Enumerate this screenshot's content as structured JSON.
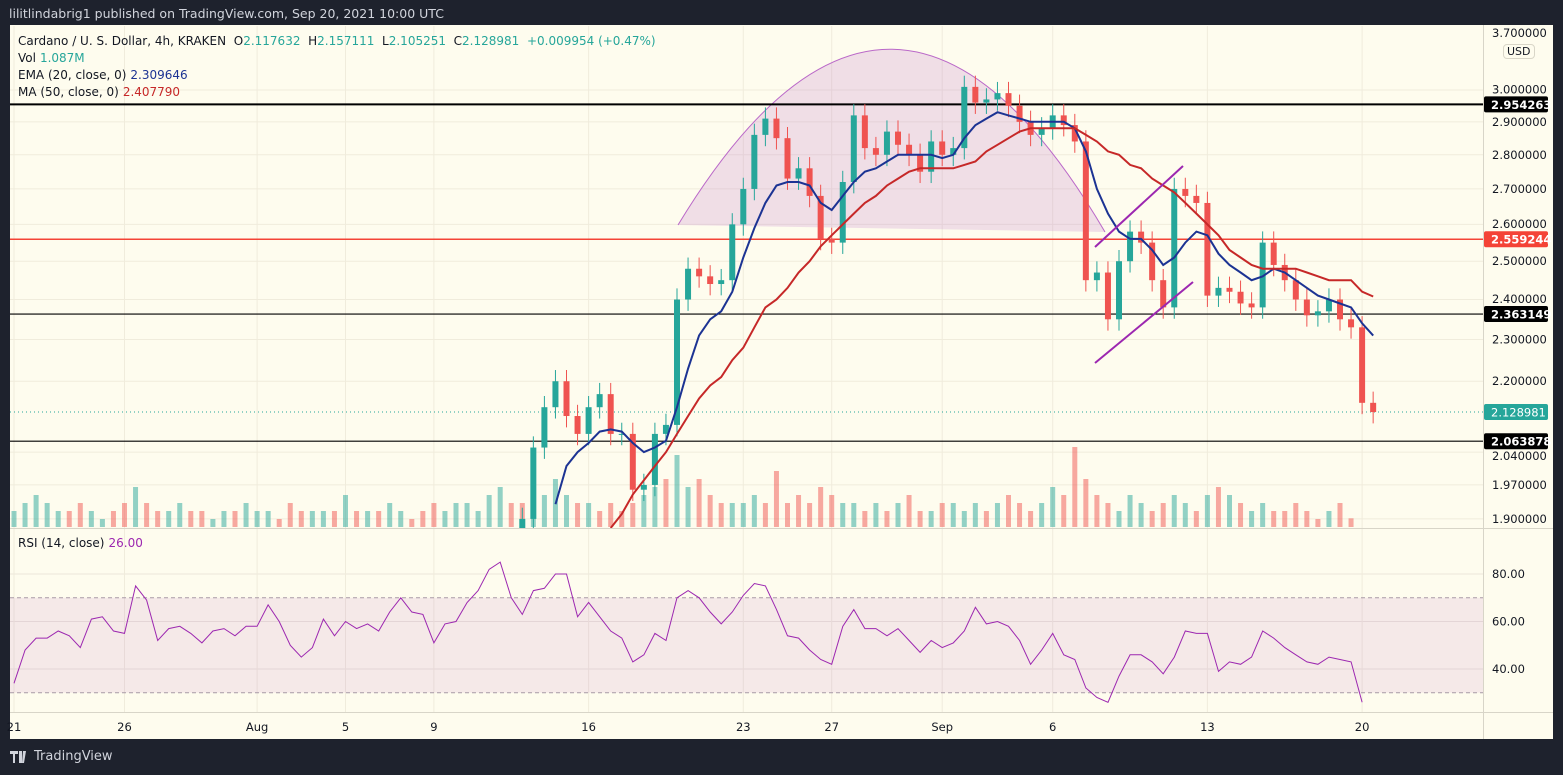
{
  "header": {
    "published": "lilitlindabrig1 published on TradingView.com, Sep 20, 2021 10:00 UTC"
  },
  "legend": {
    "symbol": "Cardano / U. S. Dollar, 4h, KRAKEN",
    "o_label": "O",
    "o": "2.117632",
    "h_label": "H",
    "h": "2.157111",
    "l_label": "L",
    "l": "2.105251",
    "c_label": "C",
    "c": "2.128981",
    "change": "+0.009954 (+0.47%)",
    "vol_label": "Vol",
    "vol": "1.087M",
    "ema_label": "EMA (20, close, 0)",
    "ema": "2.309646",
    "ma_label": "MA (50, close, 0)",
    "ma": "2.407790",
    "rsi_label": "RSI (14, close)",
    "rsi": "26.00"
  },
  "currency_button": "USD",
  "footer": {
    "brand": "TradingView"
  },
  "colors": {
    "up": "#26a69a",
    "down": "#ef5350",
    "ema": "#1c3393",
    "ma": "#c62828",
    "rsi": "#9c27b0",
    "resistance": "#f44336",
    "level": "#000000",
    "pattern": "#9c27b0"
  },
  "chart_data": [
    {
      "type": "candlestick",
      "scale": "log",
      "ylim": [
        1.9,
        3.7
      ],
      "grid": true,
      "y_ticks": [
        "3.700000",
        "3.000000",
        "2.900000",
        "2.800000",
        "2.700000",
        "2.600000",
        "2.500000",
        "2.400000",
        "2.300000",
        "2.200000",
        "2.040000",
        "1.970000",
        "1.900000"
      ],
      "x_ticks": [
        "21",
        "26",
        "Aug",
        "5",
        "9",
        "16",
        "23",
        "27",
        "Sep",
        "6",
        "13",
        "20"
      ],
      "x_tick_dates": [
        "2021-07-21",
        "2021-07-26",
        "2021-08-01",
        "2021-08-05",
        "2021-08-09",
        "2021-08-16",
        "2021-08-23",
        "2021-08-27",
        "2021-09-01",
        "2021-09-06",
        "2021-09-13",
        "2021-09-20"
      ],
      "axis_start": "2021-07-21 00:00",
      "sample_interval": "12h",
      "close_start": "2021-08-13 00:00",
      "close": [
        1.9,
        2.05,
        2.14,
        2.2,
        2.12,
        2.08,
        2.14,
        2.17,
        2.08,
        2.08,
        1.96,
        1.97,
        2.08,
        2.1,
        2.4,
        2.48,
        2.46,
        2.44,
        2.45,
        2.6,
        2.7,
        2.86,
        2.91,
        2.85,
        2.73,
        2.76,
        2.68,
        2.56,
        2.55,
        2.72,
        2.92,
        2.82,
        2.8,
        2.87,
        2.83,
        2.8,
        2.75,
        2.84,
        2.8,
        2.82,
        3.01,
        2.96,
        2.97,
        2.99,
        2.95,
        2.9,
        2.86,
        2.88,
        2.92,
        2.89,
        2.84,
        2.45,
        2.47,
        2.35,
        2.5,
        2.58,
        2.55,
        2.45,
        2.38,
        2.7,
        2.68,
        2.66,
        2.41,
        2.43,
        2.42,
        2.39,
        2.38,
        2.55,
        2.49,
        2.45,
        2.4,
        2.36,
        2.37,
        2.4,
        2.35,
        2.33,
        2.15,
        2.128981
      ],
      "ema20": [
        null,
        null,
        null,
        1.93,
        2.01,
        2.04,
        2.06,
        2.085,
        2.09,
        2.085,
        2.06,
        2.04,
        2.05,
        2.065,
        2.14,
        2.23,
        2.31,
        2.35,
        2.37,
        2.42,
        2.51,
        2.59,
        2.66,
        2.71,
        2.72,
        2.72,
        2.71,
        2.66,
        2.64,
        2.68,
        2.72,
        2.75,
        2.76,
        2.78,
        2.8,
        2.8,
        2.8,
        2.8,
        2.79,
        2.8,
        2.85,
        2.89,
        2.91,
        2.93,
        2.92,
        2.91,
        2.9,
        2.9,
        2.9,
        2.9,
        2.88,
        2.81,
        2.7,
        2.63,
        2.58,
        2.56,
        2.56,
        2.53,
        2.49,
        2.51,
        2.55,
        2.58,
        2.57,
        2.52,
        2.49,
        2.47,
        2.45,
        2.46,
        2.48,
        2.47,
        2.45,
        2.43,
        2.41,
        2.4,
        2.39,
        2.38,
        2.34,
        2.309646
      ],
      "ma50": [
        null,
        null,
        null,
        null,
        null,
        null,
        null,
        null,
        1.88,
        1.91,
        1.95,
        1.98,
        2.01,
        2.04,
        2.08,
        2.12,
        2.16,
        2.19,
        2.21,
        2.25,
        2.28,
        2.33,
        2.38,
        2.4,
        2.43,
        2.47,
        2.5,
        2.54,
        2.57,
        2.6,
        2.63,
        2.66,
        2.68,
        2.71,
        2.73,
        2.75,
        2.76,
        2.76,
        2.76,
        2.76,
        2.77,
        2.78,
        2.81,
        2.83,
        2.85,
        2.87,
        2.88,
        2.88,
        2.88,
        2.88,
        2.88,
        2.86,
        2.84,
        2.81,
        2.8,
        2.77,
        2.76,
        2.73,
        2.71,
        2.69,
        2.66,
        2.63,
        2.6,
        2.57,
        2.53,
        2.51,
        2.49,
        2.48,
        2.48,
        2.48,
        2.48,
        2.47,
        2.46,
        2.45,
        2.45,
        2.45,
        2.42,
        2.40779
      ],
      "volume_M": [
        2,
        3,
        4,
        3,
        2,
        2,
        3,
        2,
        1,
        2,
        3,
        5,
        3,
        2,
        2,
        3,
        2,
        2,
        1,
        2,
        2,
        3,
        2,
        2,
        1,
        3,
        2,
        2,
        2,
        2,
        4,
        2,
        2,
        2,
        3,
        2,
        1,
        2,
        3,
        2,
        3,
        3,
        2,
        4,
        5,
        3,
        3,
        2,
        4,
        6,
        4,
        3,
        3,
        2,
        3,
        2,
        3,
        4,
        5,
        6,
        9,
        5,
        6,
        4,
        3,
        3,
        3,
        4,
        3,
        7,
        3,
        4,
        3,
        5,
        4,
        3,
        3,
        2,
        3,
        2,
        3,
        4,
        2,
        2,
        3,
        3,
        2,
        3,
        2,
        3,
        4,
        3,
        2,
        3,
        5,
        4,
        10,
        6,
        4,
        3,
        2,
        4,
        3,
        2,
        3,
        4,
        3,
        2,
        4,
        5,
        4,
        3,
        2,
        3,
        2,
        2,
        3,
        2,
        1,
        2,
        3,
        1.087
      ],
      "levels": [
        2.954263,
        2.559244,
        2.363149,
        2.063878
      ],
      "last_price": 2.128981
    },
    {
      "type": "line",
      "name": "RSI (14, close)",
      "ylim": [
        22,
        92
      ],
      "y_ticks": [
        "80.00",
        "60.00",
        "40.00"
      ],
      "bands": [
        30,
        70
      ],
      "values": [
        34,
        48,
        53,
        53,
        56,
        54,
        49,
        61,
        62,
        56,
        55,
        75,
        69,
        52,
        57,
        58,
        55,
        51,
        56,
        57,
        54,
        58,
        58,
        67,
        60,
        50,
        45,
        49,
        61,
        54,
        60,
        57,
        59,
        56,
        64,
        70,
        64,
        63,
        51,
        59,
        60,
        68,
        73,
        82,
        85,
        70,
        63,
        73,
        74,
        80,
        80,
        62,
        68,
        62,
        56,
        53,
        43,
        46,
        55,
        52,
        70,
        73,
        70,
        64,
        59,
        64,
        71,
        76,
        75,
        65,
        54,
        53,
        48,
        44,
        42,
        58,
        65,
        57,
        57,
        54,
        57,
        52,
        47,
        52,
        49,
        51,
        56,
        66,
        59,
        60,
        58,
        52,
        42,
        48,
        55,
        46,
        44,
        32,
        28,
        26,
        37,
        46,
        46,
        43,
        38,
        45,
        56,
        55,
        55,
        39,
        43,
        42,
        45,
        56,
        53,
        49,
        46,
        43,
        42,
        45,
        44,
        43,
        26
      ]
    }
  ]
}
